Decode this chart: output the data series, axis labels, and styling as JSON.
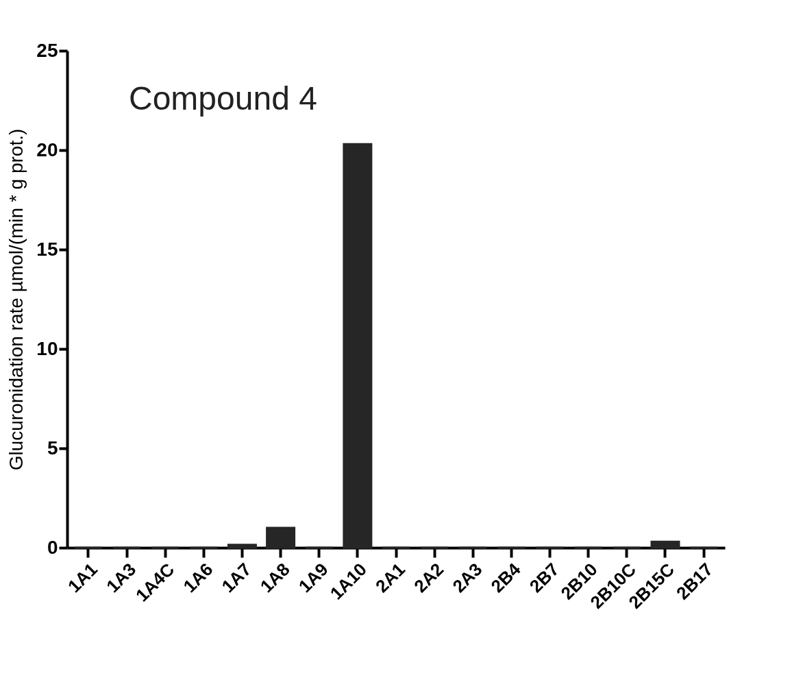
{
  "chart_data": {
    "type": "bar",
    "title": "Compound 4",
    "ylabel": "Glucuronidation rate µmol/(min * g prot.)",
    "categories": [
      "1A1",
      "1A3",
      "1A4C",
      "1A6",
      "1A7",
      "1A8",
      "1A9",
      "1A10",
      "2A1",
      "2A2",
      "2A3",
      "2B4",
      "2B7",
      "2B10",
      "2B10C",
      "2B15C",
      "2B17"
    ],
    "values": [
      0,
      0,
      0,
      0,
      0.15,
      1.0,
      0,
      20.3,
      0,
      0,
      0,
      0,
      0,
      0,
      0,
      0.3,
      0
    ],
    "color": "#262626",
    "ylim": [
      0,
      25
    ],
    "yticks": [
      0,
      5,
      10,
      15,
      20,
      25
    ],
    "grid": false
  }
}
